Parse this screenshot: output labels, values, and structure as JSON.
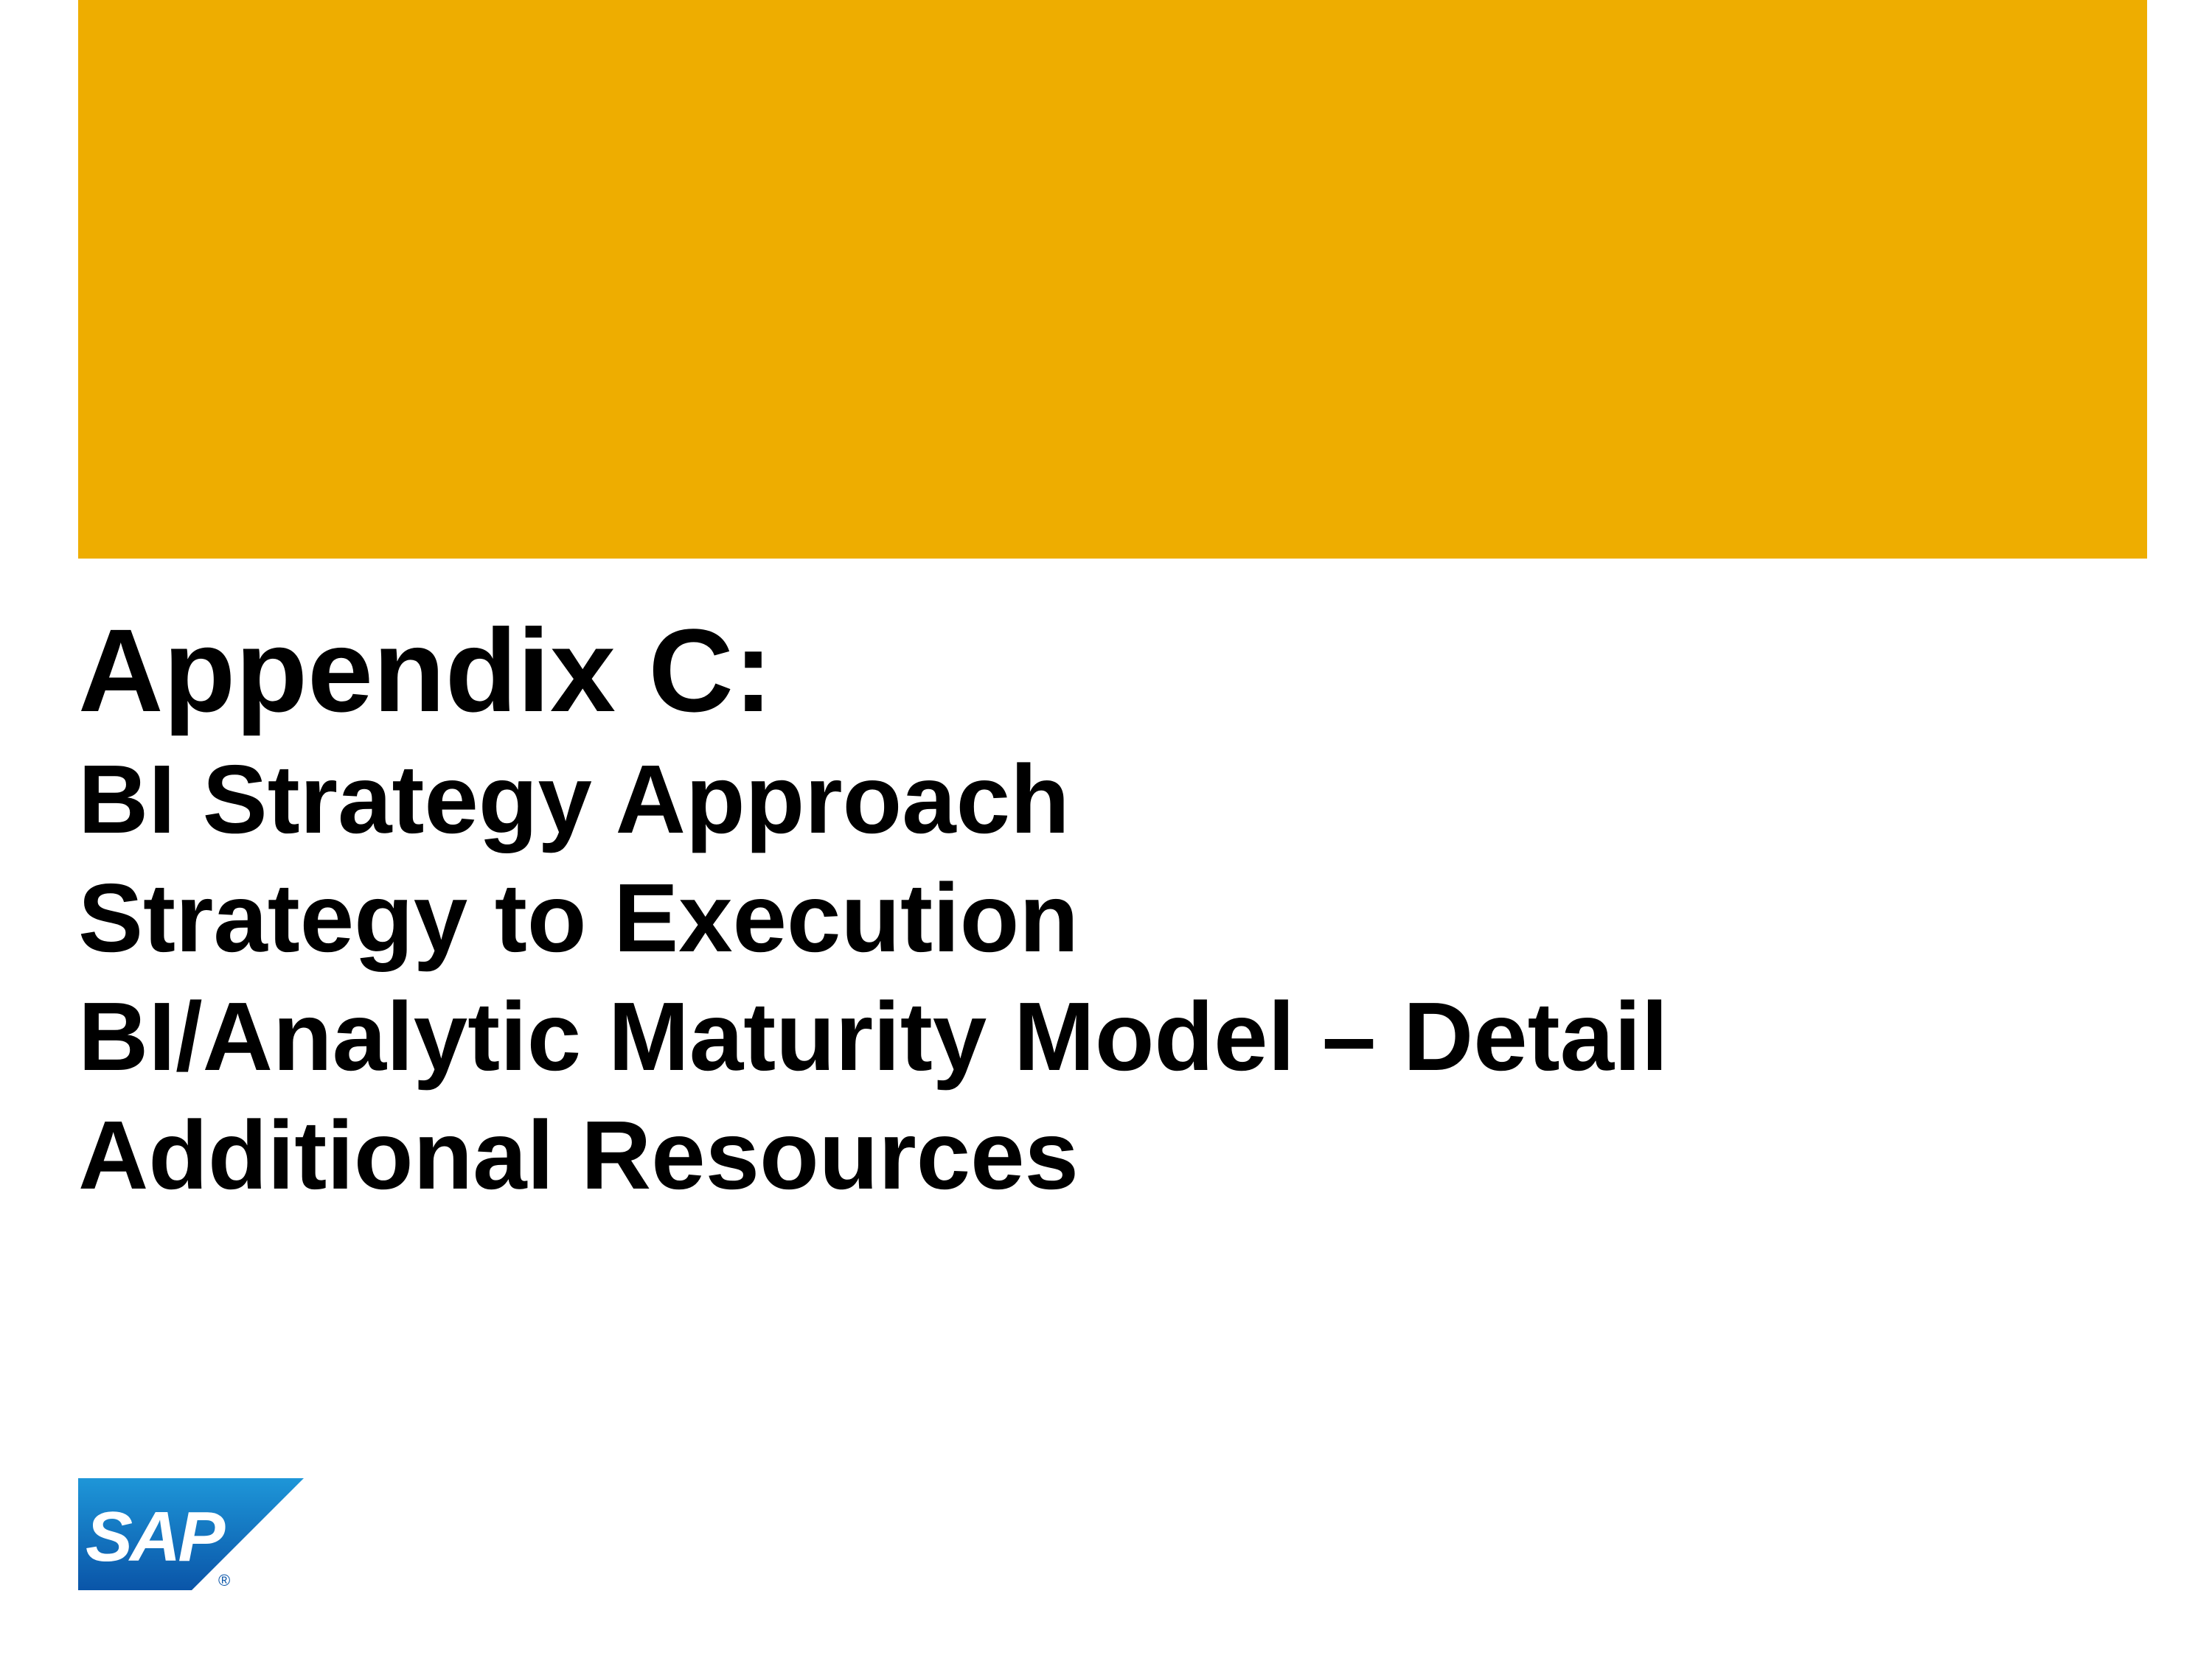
{
  "slide": {
    "banner_color": "#EEAD00",
    "title": "Appendix C:",
    "subtitles": [
      "BI Strategy Approach",
      "Strategy to Execution",
      "BI/Analytic Maturity Model – Detail",
      "Additional Resources"
    ]
  },
  "logo": {
    "text": "SAP",
    "mark": "®",
    "color_top": "#1E96D8",
    "color_bottom": "#0A55A8"
  }
}
